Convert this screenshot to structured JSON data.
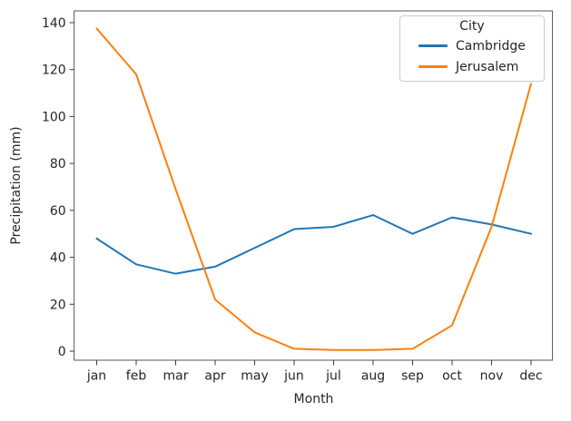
{
  "figure": {
    "background": "#ffffff",
    "spine_color": "#555555",
    "tick_color": "#3a3a3a",
    "text_color": "#262626"
  },
  "chart_data": {
    "type": "line",
    "title": "",
    "xlabel": "Month",
    "ylabel": "Precipitation (mm)",
    "categories": [
      "jan",
      "feb",
      "mar",
      "apr",
      "may",
      "jun",
      "jul",
      "aug",
      "sep",
      "oct",
      "nov",
      "dec"
    ],
    "series": [
      {
        "name": "Cambridge",
        "color": "#1f77b4",
        "values": [
          48,
          37,
          33,
          36,
          44,
          52,
          53,
          58,
          50,
          57,
          54,
          50
        ]
      },
      {
        "name": "Jerusalem",
        "color": "#ff7f0e",
        "values": [
          137.5,
          118,
          69,
          22,
          8,
          1,
          0.5,
          0.5,
          1,
          11,
          53,
          114
        ]
      }
    ],
    "legend": {
      "title": "City",
      "position": "upper right"
    },
    "ylim": [
      0,
      140
    ],
    "yticks": [
      0,
      20,
      40,
      60,
      80,
      100,
      120,
      140
    ],
    "grid": false,
    "line_width": 2
  }
}
